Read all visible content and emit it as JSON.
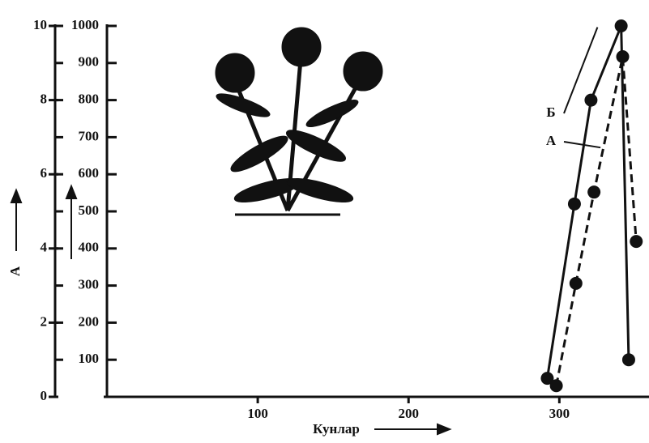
{
  "chart_data": {
    "type": "line",
    "y_label": "А",
    "x_label": "Кунлар",
    "xlim": [
      0,
      360
    ],
    "xticks": [
      100,
      200,
      300
    ],
    "ylim": [
      0,
      10
    ],
    "yticks": [
      0,
      2,
      4,
      6,
      8,
      10
    ],
    "y2lim": [
      0,
      1000
    ],
    "y2ticks": [
      100,
      200,
      300,
      400,
      500,
      600,
      700,
      800,
      900,
      1000
    ],
    "series": [
      {
        "name": "Б",
        "color": "#111111",
        "dash": false,
        "axis": "y2",
        "x": [
          292,
          310,
          321,
          341,
          346
        ],
        "values": [
          50,
          520,
          800,
          1000,
          100
        ]
      },
      {
        "name": "А",
        "color": "#111111",
        "dash": true,
        "axis": "y2",
        "x": [
          298,
          311,
          323,
          342,
          351
        ],
        "values": [
          30,
          306,
          552,
          917,
          419
        ]
      }
    ]
  }
}
